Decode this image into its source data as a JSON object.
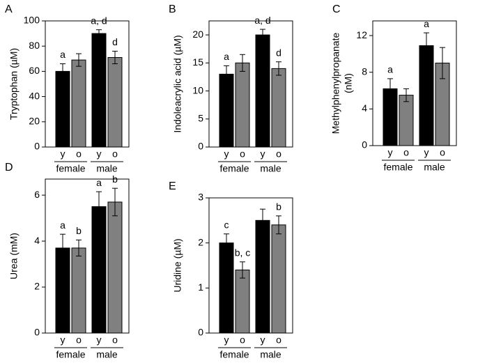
{
  "chart_data": [
    {
      "type": "bar",
      "panel": "A",
      "y_label": "Tryptophan (µM)",
      "categories": [
        "y",
        "o",
        "y",
        "o"
      ],
      "groups": [
        "female",
        "male"
      ],
      "values": [
        60,
        69,
        90,
        71
      ],
      "errors": [
        6,
        5,
        3,
        5
      ],
      "annotations": [
        "a",
        null,
        "a, d",
        "d"
      ],
      "colors": [
        "#000000",
        "#808080",
        "#000000",
        "#808080"
      ],
      "ylim": [
        0,
        100
      ],
      "yticks": [
        0,
        20,
        40,
        60,
        80,
        100
      ]
    },
    {
      "type": "bar",
      "panel": "B",
      "y_label": "Indoleacrylic acid (µM)",
      "categories": [
        "y",
        "o",
        "y",
        "o"
      ],
      "groups": [
        "female",
        "male"
      ],
      "values": [
        13,
        15,
        20,
        14
      ],
      "errors": [
        1.5,
        1.5,
        1,
        1.2
      ],
      "annotations": [
        "a",
        null,
        "a, d",
        "d"
      ],
      "colors": [
        "#000000",
        "#808080",
        "#000000",
        "#808080"
      ],
      "ylim": [
        0,
        22.5
      ],
      "yticks": [
        0,
        5,
        10,
        15,
        20
      ]
    },
    {
      "type": "bar",
      "panel": "C",
      "y_label": [
        "Methylphenylpropanate",
        "(nM)"
      ],
      "categories": [
        "y",
        "o",
        "y",
        "o"
      ],
      "groups": [
        "female",
        "male"
      ],
      "values": [
        6.2,
        5.5,
        10.9,
        9.0
      ],
      "errors": [
        1.1,
        0.7,
        1.4,
        1.7
      ],
      "annotations": [
        "a",
        null,
        "a",
        null
      ],
      "colors": [
        "#000000",
        "#808080",
        "#000000",
        "#808080"
      ],
      "ylim": [
        0,
        13.6
      ],
      "yticks": [
        0,
        4,
        8,
        12
      ]
    },
    {
      "type": "bar",
      "panel": "D",
      "y_label": "Urea (mM)",
      "categories": [
        "y",
        "o",
        "y",
        "o"
      ],
      "groups": [
        "female",
        "male"
      ],
      "values": [
        3.7,
        3.7,
        5.5,
        5.7
      ],
      "errors": [
        0.6,
        0.35,
        0.65,
        0.6
      ],
      "annotations": [
        "a",
        "b",
        "a",
        "b"
      ],
      "colors": [
        "#000000",
        "#808080",
        "#000000",
        "#808080"
      ],
      "ylim": [
        0,
        6.7
      ],
      "yticks": [
        0,
        2,
        4,
        6
      ]
    },
    {
      "type": "bar",
      "panel": "E",
      "y_label": "Uridine (µM)",
      "categories": [
        "y",
        "o",
        "y",
        "o"
      ],
      "groups": [
        "female",
        "male"
      ],
      "values": [
        2.0,
        1.4,
        2.5,
        2.4
      ],
      "errors": [
        0.2,
        0.18,
        0.25,
        0.2
      ],
      "annotations": [
        "c",
        "b, c",
        null,
        "b"
      ],
      "colors": [
        "#000000",
        "#808080",
        "#000000",
        "#808080"
      ],
      "ylim": [
        0,
        3
      ],
      "yticks": [
        0,
        1,
        2,
        3
      ]
    }
  ]
}
